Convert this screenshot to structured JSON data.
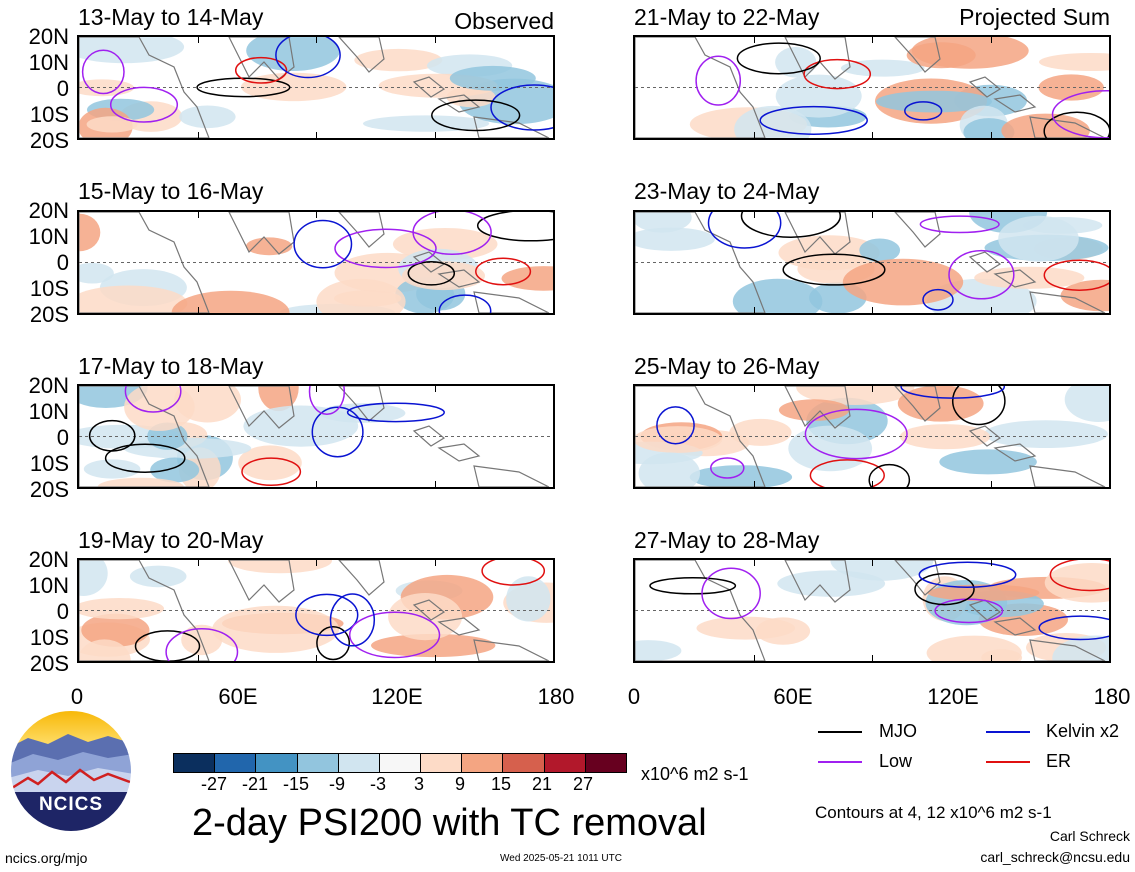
{
  "panels": [
    {
      "id": "p1",
      "title": "13-May to 14-May",
      "label": "Observed"
    },
    {
      "id": "p2",
      "title": "15-May to 16-May",
      "label": ""
    },
    {
      "id": "p3",
      "title": "17-May to 18-May",
      "label": ""
    },
    {
      "id": "p4",
      "title": "19-May to 20-May",
      "label": ""
    },
    {
      "id": "p5",
      "title": "21-May to 22-May",
      "label": "Projected Sum"
    },
    {
      "id": "p6",
      "title": "23-May to 24-May",
      "label": ""
    },
    {
      "id": "p7",
      "title": "25-May to 26-May",
      "label": ""
    },
    {
      "id": "p8",
      "title": "27-May to 28-May",
      "label": ""
    }
  ],
  "lat_labels": [
    "20N",
    "10N",
    "0",
    "10S",
    "20S"
  ],
  "lon_labels": [
    "0",
    "60E",
    "120E",
    "180"
  ],
  "legend": {
    "mjo": "MJO",
    "kelvin": "Kelvin x2",
    "low": "Low",
    "er": "ER",
    "colors": {
      "mjo": "#000000",
      "kelvin": "#0a14d2",
      "low": "#a020f0",
      "er": "#e01010"
    }
  },
  "colorbar": {
    "labels": [
      "-27",
      "-21",
      "-15",
      "-9",
      "-3",
      "3",
      "9",
      "15",
      "21",
      "27"
    ],
    "colors": [
      "#0b2f5e",
      "#2166ac",
      "#4393c3",
      "#92c5de",
      "#d1e5f0",
      "#f7f7f7",
      "#fddbc7",
      "#f4a582",
      "#d6604d",
      "#b2182b",
      "#67001f"
    ],
    "units": "x10^6 m2 s-1"
  },
  "title": "2-day PSI200 with TC removal",
  "contours_note": "Contours at 4, 12 x10^6 m2 s-1",
  "logo_text": "NCICS",
  "url": "ncics.org/mjo",
  "timestamp": "Wed 2025-05-21 1011 UTC",
  "author": "Carl Schreck",
  "email": "carl_schreck@ncsu.edu"
}
